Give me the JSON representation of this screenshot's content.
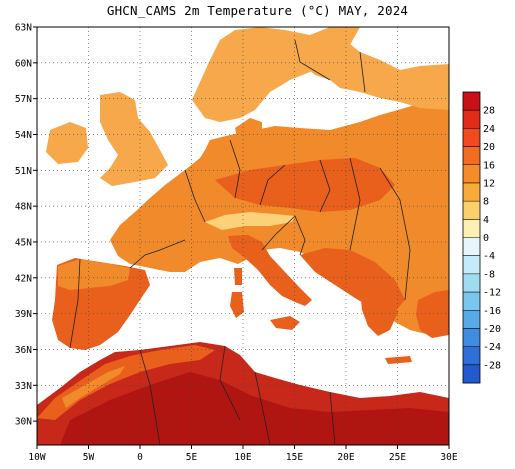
{
  "title": "GHCN_CAMS 2m Temperature (°C) MAY, 2024",
  "map": {
    "lon_range": [
      -10,
      30
    ],
    "lat_range": [
      28,
      63
    ],
    "lat_ticks": [
      "63N",
      "60N",
      "57N",
      "54N",
      "51N",
      "48N",
      "45N",
      "42N",
      "39N",
      "36N",
      "33N",
      "30N"
    ],
    "lon_ticks": [
      "10W",
      "5W",
      "0",
      "5E",
      "10E",
      "15E",
      "20E",
      "25E",
      "30E"
    ],
    "gridlines": "dotted",
    "colors": {
      "sea": "#ffffff",
      "cool": "#f7a84a",
      "mild": "#f08a2a",
      "warm": "#e8601c",
      "hot": "#c8281a",
      "hottest": "#b01512",
      "alpine": "#fbd27a",
      "border": "#222222"
    }
  },
  "colorbar": {
    "labels": [
      "28",
      "24",
      "20",
      "16",
      "12",
      "8",
      "4",
      "0",
      "-4",
      "-8",
      "-12",
      "-16",
      "-20",
      "-24",
      "-28"
    ],
    "colors": [
      "#c8101a",
      "#e02c18",
      "#f04a1e",
      "#f26c22",
      "#f48c2a",
      "#f7ab3a",
      "#fbcf6a",
      "#fdf0b4",
      "#e6f6fb",
      "#c4ebf7",
      "#9fdcf2",
      "#7ac6ee",
      "#58aae6",
      "#3f8ce0",
      "#2e6fd8",
      "#245ad0"
    ]
  }
}
